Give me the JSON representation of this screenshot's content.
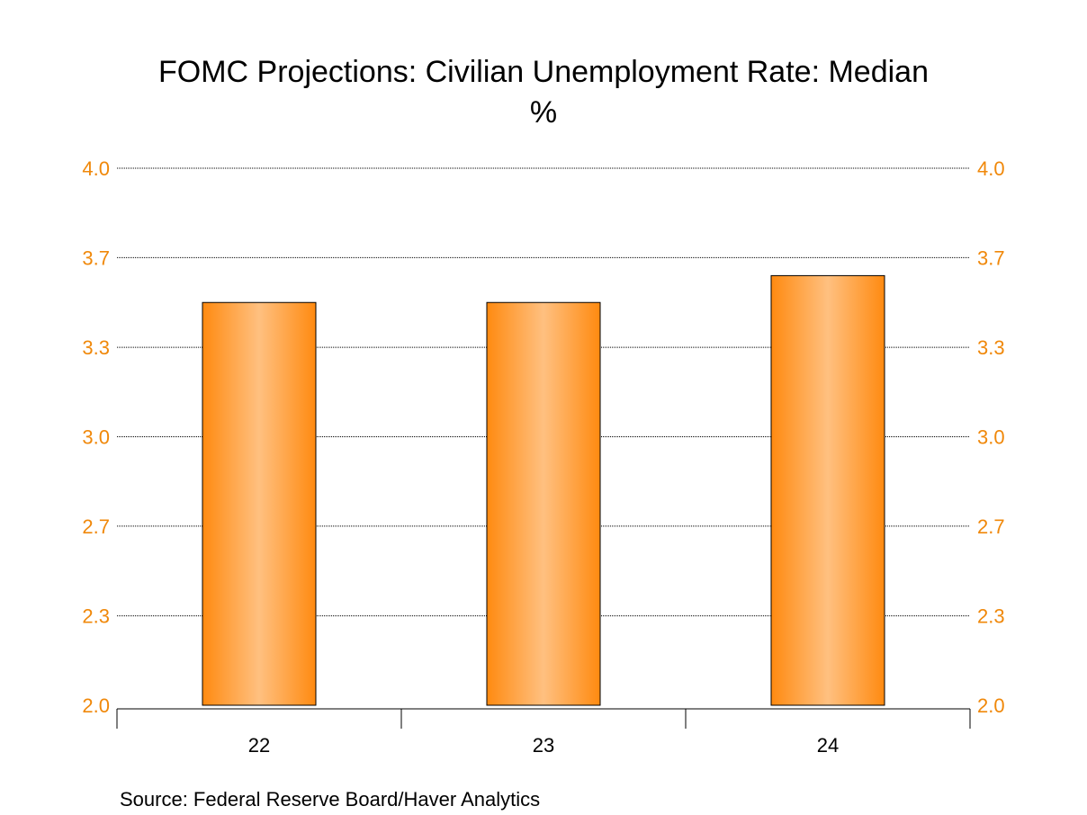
{
  "chart_data": {
    "type": "bar",
    "title": "FOMC Projections: Civilian Unemployment Rate: Median",
    "subtitle": "%",
    "categories": [
      "22",
      "23",
      "24"
    ],
    "series": [
      {
        "values": [
          3.5,
          3.5,
          3.6
        ]
      }
    ],
    "ylim": [
      2.0,
      4.0
    ],
    "yticks": [
      "2.0",
      "2.3",
      "2.7",
      "3.0",
      "3.3",
      "3.7",
      "4.0"
    ],
    "ytick_values": [
      2.0,
      2.333,
      2.667,
      3.0,
      3.333,
      3.667,
      4.0
    ],
    "y_axis_both_sides": true,
    "grid": "horizontal dotted",
    "bar_color": "#ff8c1a",
    "bar_highlight": "#ffc080",
    "tick_color": "#f0880a"
  },
  "source": "Source:  Federal Reserve Board/Haver Analytics"
}
